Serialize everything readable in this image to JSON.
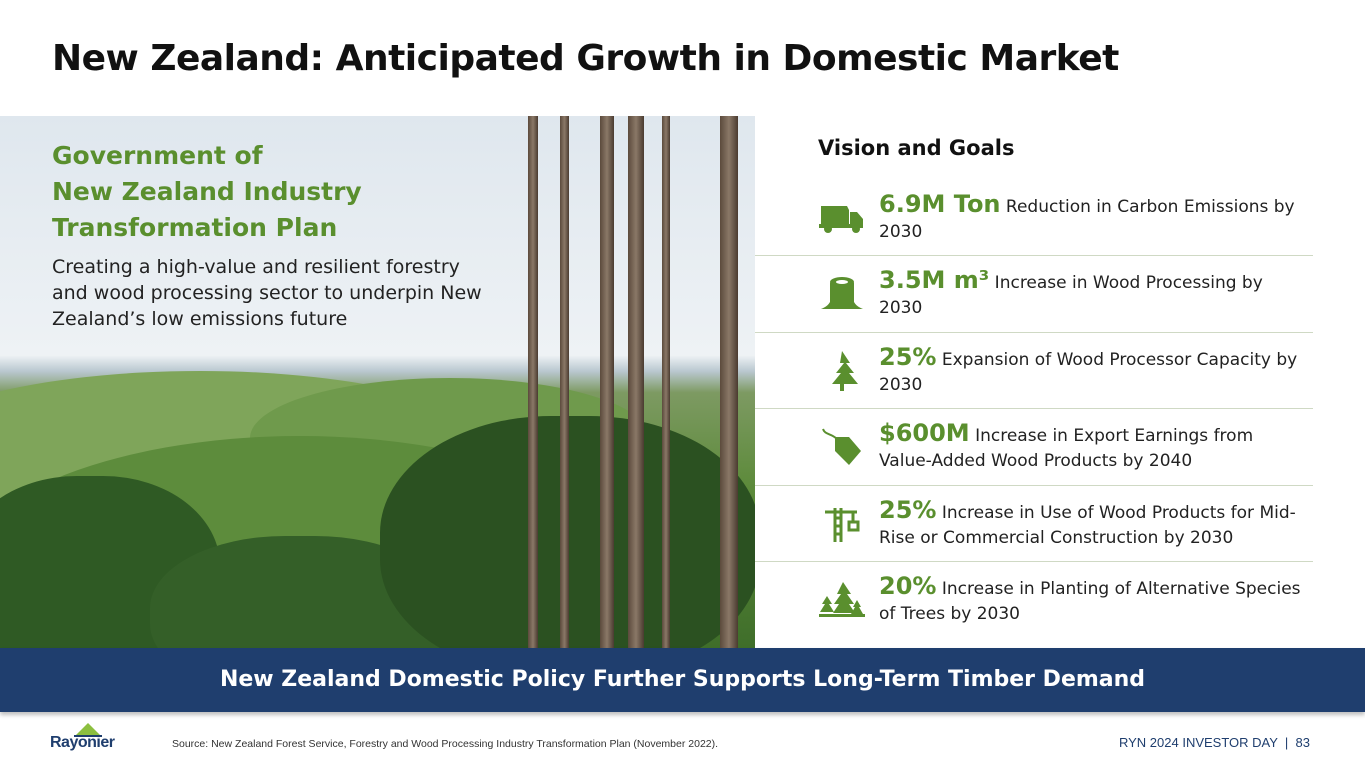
{
  "title": "New Zealand: Anticipated Growth in Domestic Market",
  "left": {
    "heading_lines": [
      "Government of",
      "New Zealand Industry",
      "Transformation Plan"
    ],
    "description": "Creating a high-value and resilient forestry and wood processing sector to underpin New Zealand’s low emissions future"
  },
  "vision": {
    "heading": "Vision and Goals",
    "items": [
      {
        "icon": "dump-truck-icon",
        "value": "6.9M Ton",
        "text": " Reduction in Carbon Emissions by 2030"
      },
      {
        "icon": "tree-stump-icon",
        "value": "3.5M m³",
        "text": " Increase in Wood Processing by 2030"
      },
      {
        "icon": "pine-tree-icon",
        "value": "25%",
        "text": " Expansion of Wood Processor Capacity by 2030"
      },
      {
        "icon": "price-tag-icon",
        "value": "$600M",
        "text": " Increase in Export Earnings from Value-Added Wood Products by 2040"
      },
      {
        "icon": "construction-crane-icon",
        "value": "25%",
        "text": " Increase in Use of Wood Products for Mid-Rise or Commercial Construction by 2030"
      },
      {
        "icon": "forest-icon",
        "value": "20%",
        "text": " Increase in Planting of Alternative Species of Trees by 2030"
      }
    ]
  },
  "banner": "New Zealand Domestic Policy Further Supports Long-Term Timber Demand",
  "footer": {
    "logo": "Rayonier",
    "source": "Source: New Zealand Forest Service, Forestry and Wood Processing Industry Transformation Plan (November 2022).",
    "event": "RYN 2024 INVESTOR DAY  |  83"
  },
  "colors": {
    "accent_green": "#5a8f2e",
    "navy": "#1f3e6e"
  }
}
